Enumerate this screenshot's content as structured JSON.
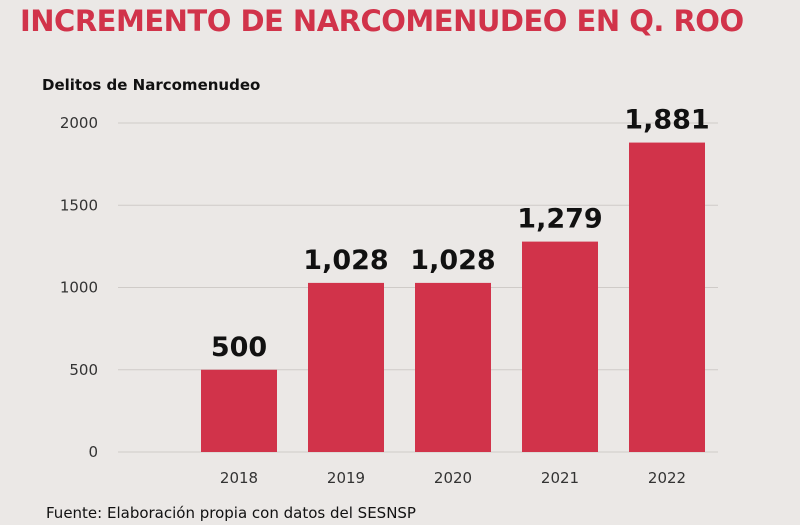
{
  "chart_data": {
    "type": "bar",
    "title": "INCREMENTO DE NARCOMENUDEO EN Q. ROO",
    "ylabel": "Delitos de Narcomenudeo",
    "xlabel": "",
    "categories": [
      "2018",
      "2019",
      "2020",
      "2021",
      "2022"
    ],
    "values": [
      500,
      1028,
      1028,
      1279,
      1881
    ],
    "data_labels": [
      "500",
      "1,028",
      "1,028",
      "1,279",
      "1,881"
    ],
    "ylim": [
      0,
      2000
    ],
    "yticks": [
      0,
      500,
      1000,
      1500,
      2000
    ],
    "grid": true,
    "legend": "none",
    "colors": {
      "title": "#d1334a",
      "bar": "#d1334a",
      "grid": "#cfcbc8"
    }
  },
  "source": "Fuente: Elaboración propia con datos del SESNSP"
}
